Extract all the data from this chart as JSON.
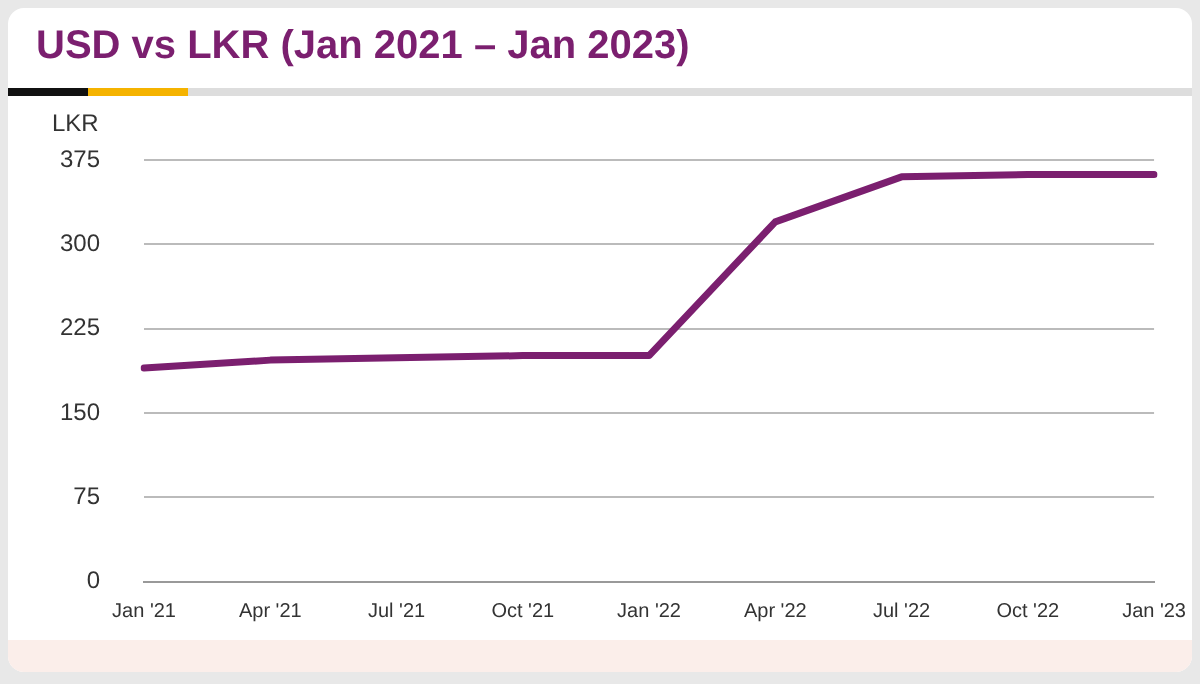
{
  "chart_data": {
    "type": "line",
    "title": "USD vs LKR (Jan 2021 – Jan 2023)",
    "ylabel": "LKR",
    "categories": [
      "Jan '21",
      "Apr '21",
      "Jul '21",
      "Oct '21",
      "Jan '22",
      "Apr '22",
      "Jul '22",
      "Oct '22",
      "Jan '23"
    ],
    "series": [
      {
        "color": "#7b1f6f",
        "values": [
          190,
          197,
          199,
          201,
          201,
          320,
          360,
          362,
          362
        ]
      }
    ],
    "ylim": [
      0,
      375
    ],
    "yticks": [
      0,
      75,
      150,
      225,
      300,
      375
    ],
    "grid": "y",
    "legend": false,
    "marker": "none",
    "line_style": "solid"
  }
}
